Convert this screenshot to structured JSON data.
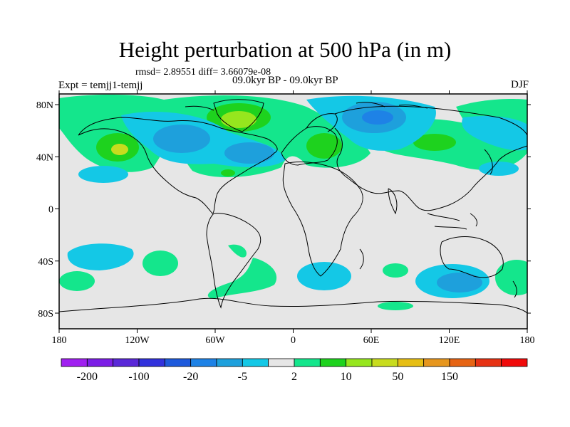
{
  "title": "Height perturbation at 500 hPa (in m)",
  "stats": "rmsd= 2.89551 diff= 3.66079e-08",
  "expt": "Expt = temjj1-temjj",
  "period": "09.0kyr BP - 09.0kyr BP",
  "season": "DJF",
  "lon_ticks": [
    "180",
    "120W",
    "60W",
    "0",
    "60E",
    "120E",
    "180"
  ],
  "lat_ticks": [
    "80N",
    "40N",
    "0",
    "40S",
    "80S"
  ],
  "colorbar": {
    "colors": [
      "#a020f0",
      "#7c1ee6",
      "#5a28d8",
      "#3232dc",
      "#1e5adc",
      "#1e82e6",
      "#1ea0dc",
      "#14c8e6",
      "#e6e6e6",
      "#14e68c",
      "#1ed21e",
      "#96e61e",
      "#c8dc1e",
      "#e6be14",
      "#e6961e",
      "#e66414",
      "#e63214",
      "#f00a0a"
    ],
    "labels": [
      "-200",
      "-100",
      "-20",
      "-5",
      "2",
      "10",
      "50",
      "150"
    ]
  }
}
